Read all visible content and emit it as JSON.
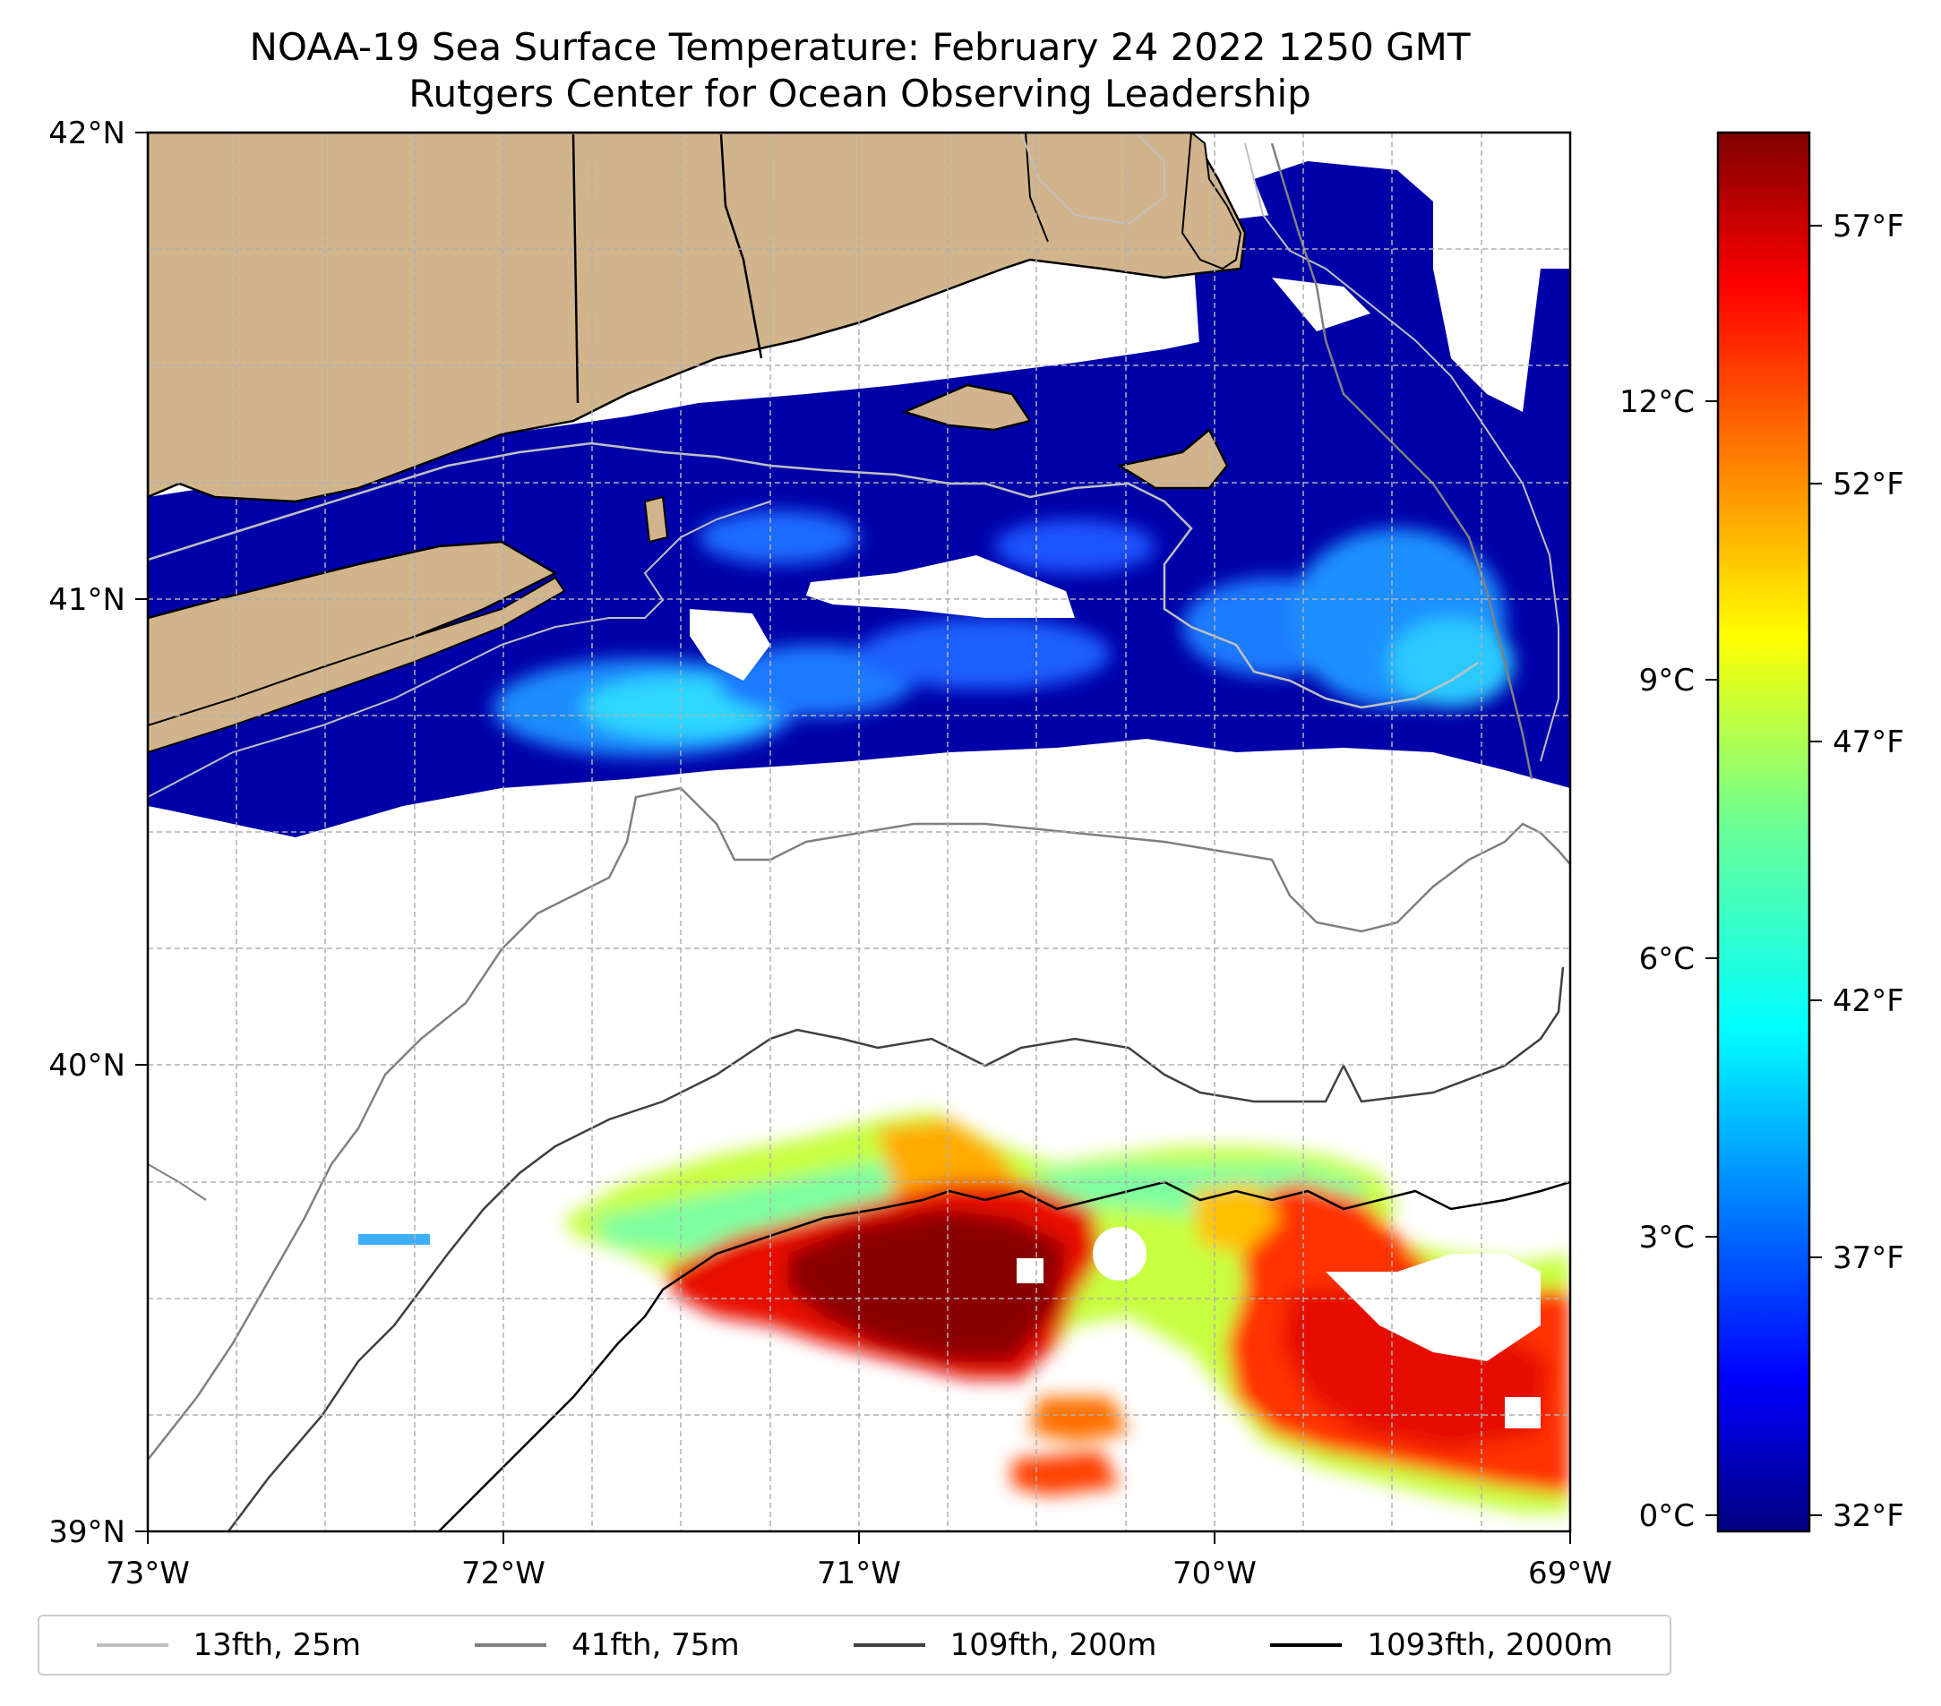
{
  "title": "NOAA-19 Sea Surface Temperature: February 24 2022 1250 GMT",
  "subtitle": "Rutgers Center for Ocean Observing Leadership",
  "map": {
    "lon_ticks": [
      "73°W",
      "72°W",
      "71°W",
      "70°W",
      "69°W"
    ],
    "lat_ticks": [
      "42°N",
      "41°N",
      "40°N",
      "39°N"
    ],
    "lon_range": [
      -73,
      -69
    ],
    "lat_range": [
      39,
      42
    ],
    "land_color": "#d2b48c",
    "grid": true,
    "grid_style": "dashed"
  },
  "colorbar": {
    "colormap": "jet",
    "celsius_labels": [
      "12°C",
      "9°C",
      "6°C",
      "3°C",
      "0°C"
    ],
    "celsius_values": [
      12,
      9,
      6,
      3,
      0
    ],
    "fahrenheit_labels": [
      "57°F",
      "52°F",
      "47°F",
      "42°F",
      "37°F",
      "32°F"
    ],
    "fahrenheit_values": [
      57,
      52,
      47,
      42,
      37,
      32
    ]
  },
  "legend": {
    "placement": "bottom",
    "items": [
      {
        "label": "13fth, 25m",
        "color": "#c0c0c0"
      },
      {
        "label": "41fth, 75m",
        "color": "#808080"
      },
      {
        "label": "109fth, 200m",
        "color": "#404040"
      },
      {
        "label": "1093fth, 2000m",
        "color": "#000000"
      }
    ]
  }
}
